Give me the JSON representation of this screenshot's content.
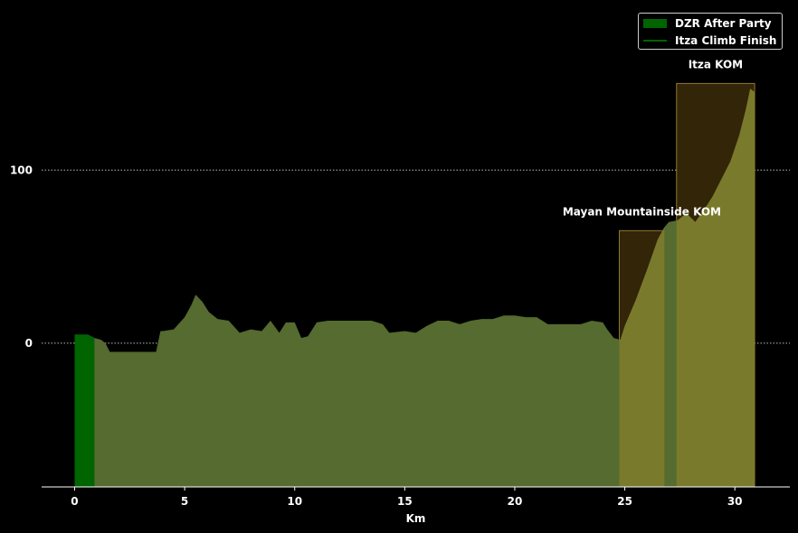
{
  "chart_data": {
    "type": "area",
    "xlabel": "Km",
    "ylabel": "",
    "xlim": [
      -1.5,
      32.5
    ],
    "ylim": [
      -83,
      193
    ],
    "x_ticks": [
      0,
      5,
      10,
      15,
      20,
      25,
      30
    ],
    "y_ticks": [
      0,
      100
    ],
    "grid": "horizontal dotted",
    "legend_position": "top-right",
    "legend": [
      "DZR After Party",
      "Itza Climb Finish"
    ],
    "colors": {
      "profile": "#556b2f",
      "segment": "#006400",
      "climb_fill": "#7a7a2c",
      "climb_box": "#332508",
      "climb_edge": "#8b7a2a",
      "grid": "#bbbbbb"
    },
    "elevation_profile": {
      "x": [
        0,
        0.3,
        0.6,
        0.9,
        1.2,
        1.4,
        1.6,
        2.0,
        3.0,
        3.7,
        3.9,
        4.0,
        4.5,
        5.0,
        5.3,
        5.5,
        5.8,
        6.1,
        6.5,
        7.0,
        7.5,
        8.0,
        8.5,
        8.9,
        9.3,
        9.6,
        10.0,
        10.3,
        10.6,
        11.0,
        11.5,
        12.0,
        12.5,
        13.0,
        13.5,
        14.0,
        14.3,
        15.0,
        15.5,
        16.0,
        16.5,
        17.0,
        17.5,
        18.0,
        18.5,
        19.0,
        19.5,
        20.0,
        20.5,
        21.0,
        21.5,
        22.0,
        22.5,
        23.0,
        23.5,
        24.0,
        24.2,
        24.5,
        24.8,
        25.0,
        25.5,
        26.0,
        26.5,
        26.8,
        27.0,
        27.4,
        27.8,
        28.2,
        28.6,
        29.0,
        29.4,
        29.8,
        30.2,
        30.5,
        30.7,
        30.9
      ],
      "y": [
        5,
        5,
        5,
        3,
        2,
        0,
        -5,
        -5,
        -5,
        -5,
        7,
        7,
        8,
        15,
        22,
        28,
        24,
        18,
        14,
        13,
        6,
        8,
        7,
        13,
        6,
        12,
        12,
        3,
        4,
        12,
        13,
        13,
        13,
        13,
        13,
        11,
        6,
        7,
        6,
        10,
        13,
        13,
        11,
        13,
        14,
        14,
        16,
        16,
        15,
        15,
        11,
        11,
        11,
        11,
        13,
        12,
        8,
        3,
        2,
        10,
        25,
        42,
        60,
        67,
        70,
        71,
        75,
        70,
        77,
        85,
        95,
        105,
        120,
        135,
        147,
        145
      ]
    },
    "segment_after_party": {
      "name": "DZR After Party",
      "x_start": 0.0,
      "x_end": 0.9
    },
    "climb_finish_line": {
      "name": "Itza Climb Finish"
    },
    "climbs": [
      {
        "label": "Mayan Mountainside KOM",
        "x_start": 24.75,
        "x_end": 26.8,
        "top": 65
      },
      {
        "label": "Itza KOM",
        "x_start": 27.35,
        "x_end": 30.9,
        "top": 150
      }
    ]
  }
}
